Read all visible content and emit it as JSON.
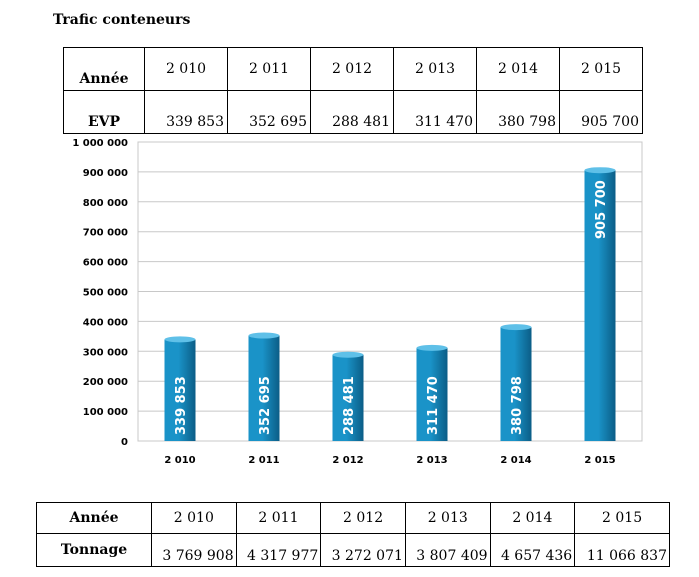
{
  "title": "Trafic conteneurs",
  "evp_table": {
    "row1_label": "Année",
    "row2_label": "EVP",
    "years": [
      "2 010",
      "2 011",
      "2 012",
      "2 013",
      "2 014",
      "2 015"
    ],
    "values": [
      "339 853",
      "352 695",
      "288 481",
      "311 470",
      "380 798",
      "905 700"
    ]
  },
  "tonnage_table": {
    "row1_label": "Année",
    "row2_label": "Tonnage",
    "years": [
      "2 010",
      "2 011",
      "2 012",
      "2 013",
      "2 014",
      "2 015"
    ],
    "values": [
      "3 769 908",
      "4 317 977",
      "3 272 071",
      "3 807 409",
      "4 657 436",
      "11 066 837"
    ]
  },
  "chart_data": {
    "type": "bar",
    "categories": [
      "2 010",
      "2 011",
      "2 012",
      "2 013",
      "2 014",
      "2 015"
    ],
    "values": [
      339853,
      352695,
      288481,
      311470,
      380798,
      905700
    ],
    "data_labels": [
      "339 853",
      "352 695",
      "288 481",
      "311 470",
      "380 798",
      "905 700"
    ],
    "yticks": [
      0,
      100000,
      200000,
      300000,
      400000,
      500000,
      600000,
      700000,
      800000,
      900000,
      1000000
    ],
    "ytick_labels": [
      "0",
      "100 000",
      "200 000",
      "300 000",
      "400 000",
      "500 000",
      "600 000",
      "700 000",
      "800 000",
      "900 000",
      "1 000 000"
    ],
    "ylim": [
      0,
      1000000
    ],
    "grid": true,
    "legend": "none",
    "bar_color": "#1a93c8",
    "bar_color_dark": "#0b5d86",
    "label_color": "#ffffff"
  }
}
